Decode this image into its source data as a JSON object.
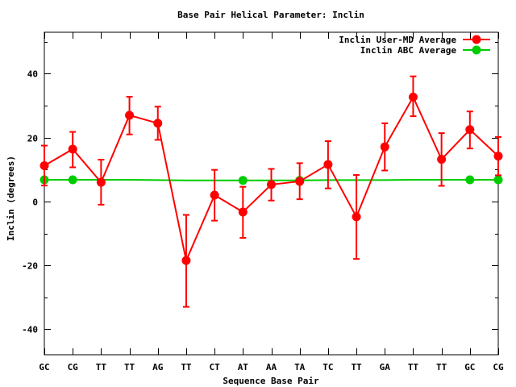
{
  "chart_data": {
    "type": "line",
    "title": "Base Pair Helical Parameter: Inclin",
    "xlabel": "Sequence Base Pair",
    "ylabel": "Inclin (degrees)",
    "categories": [
      "GC",
      "CG",
      "TT",
      "TT",
      "AG",
      "TT",
      "CT",
      "AT",
      "AA",
      "TA",
      "TC",
      "TT",
      "GA",
      "TT",
      "TT",
      "GC",
      "CG"
    ],
    "ylim": [
      -48,
      53
    ],
    "yticks": [
      -40,
      -20,
      0,
      20,
      40
    ],
    "ytick_labels": [
      "-40",
      "-20",
      "0",
      "20",
      "40"
    ],
    "grid": false,
    "legend_position": "top-right",
    "series": [
      {
        "name": "Inclin User-MD Average",
        "color": "#ff0000",
        "values": [
          11.2,
          16.4,
          6.0,
          27.0,
          24.5,
          -18.5,
          2.0,
          -3.3,
          5.3,
          6.3,
          11.6,
          -4.8,
          17.1,
          32.7,
          13.2,
          22.5,
          14.2
        ],
        "err_low": [
          5.0,
          10.7,
          -1.0,
          21.0,
          19.3,
          -33.0,
          -6.0,
          -11.4,
          0.3,
          0.7,
          4.1,
          -18.0,
          9.7,
          26.7,
          4.9,
          16.6,
          8.2
        ],
        "err_high": [
          17.5,
          21.8,
          13.1,
          32.8,
          29.7,
          -4.2,
          9.9,
          4.6,
          10.2,
          12.0,
          18.9,
          8.3,
          24.5,
          39.2,
          21.4,
          28.2,
          20.2
        ]
      },
      {
        "name": "Inclin ABC Average",
        "color": "#00cc00",
        "values": [
          6.8,
          6.8,
          6.8,
          6.8,
          6.7,
          6.6,
          6.6,
          6.6,
          6.6,
          6.6,
          6.7,
          6.7,
          6.7,
          6.8,
          6.8,
          6.8,
          6.8
        ],
        "marker_indices": [
          0,
          1,
          7,
          9,
          15,
          16
        ]
      }
    ]
  }
}
